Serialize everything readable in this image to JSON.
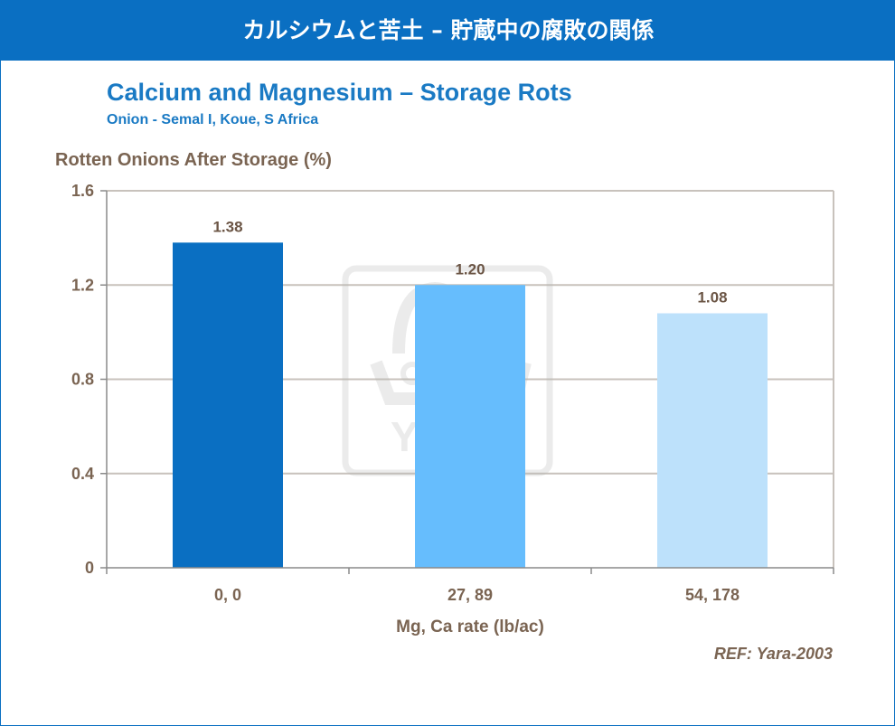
{
  "header": {
    "title": "カルシウムと苦土 – 貯蔵中の腐敗の関係"
  },
  "chart_data": {
    "type": "bar",
    "title": "Calcium and Magnesium – Storage Rots",
    "subtitle": "Onion - Semal I, Koue, S Africa",
    "ylabel": "Rotten Onions After Storage (%)",
    "xlabel": "Mg, Ca rate (lb/ac)",
    "categories": [
      "0, 0",
      "27, 89",
      "54, 178"
    ],
    "values": [
      1.38,
      1.2,
      1.08
    ],
    "data_labels": [
      "1.38",
      "1.20",
      "1.08"
    ],
    "ylim": [
      0,
      1.6
    ],
    "yticks": [
      0,
      0.4,
      0.8,
      1.2,
      1.6
    ],
    "ytick_labels": [
      "0",
      "0.4",
      "0.8",
      "1.2",
      "1.6"
    ],
    "grid": true,
    "bar_colors": [
      "#0a6fc2",
      "#66bdfd",
      "#bde1fb"
    ]
  },
  "watermark": {
    "text": "YARA"
  },
  "reference": "REF: Yara-2003",
  "colors": {
    "brand": "#0a6fc2",
    "axis_text": "#7a6452",
    "grid": "#c8c2bc"
  }
}
